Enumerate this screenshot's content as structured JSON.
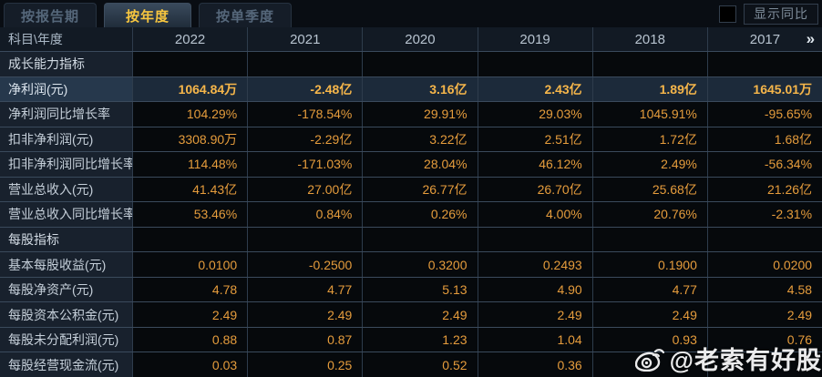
{
  "tabs": [
    {
      "id": "by-report-period",
      "label": "按报告期",
      "active": false
    },
    {
      "id": "by-year",
      "label": "按年度",
      "active": true
    },
    {
      "id": "by-quarter",
      "label": "按单季度",
      "active": false
    }
  ],
  "controls": {
    "show_yoy_label": "显示同比",
    "checkbox_checked": false
  },
  "table": {
    "corner_header": "科目\\年度",
    "year_columns": [
      "2022",
      "2021",
      "2020",
      "2019",
      "2018",
      "2017"
    ],
    "more_icon": "»",
    "rows": [
      {
        "type": "section",
        "label": "成长能力指标",
        "values": [
          "",
          "",
          "",
          "",
          "",
          ""
        ]
      },
      {
        "type": "highlight",
        "label": "净利润(元)",
        "values": [
          "1064.84万",
          "-2.48亿",
          "3.16亿",
          "2.43亿",
          "1.89亿",
          "1645.01万"
        ]
      },
      {
        "type": "data",
        "label": "净利润同比增长率",
        "values": [
          "104.29%",
          "-178.54%",
          "29.91%",
          "29.03%",
          "1045.91%",
          "-95.65%"
        ]
      },
      {
        "type": "data",
        "label": "扣非净利润(元)",
        "values": [
          "3308.90万",
          "-2.29亿",
          "3.22亿",
          "2.51亿",
          "1.72亿",
          "1.68亿"
        ]
      },
      {
        "type": "data",
        "label": "扣非净利润同比增长率",
        "values": [
          "114.48%",
          "-171.03%",
          "28.04%",
          "46.12%",
          "2.49%",
          "-56.34%"
        ]
      },
      {
        "type": "data",
        "label": "营业总收入(元)",
        "values": [
          "41.43亿",
          "27.00亿",
          "26.77亿",
          "26.70亿",
          "25.68亿",
          "21.26亿"
        ]
      },
      {
        "type": "data",
        "label": "营业总收入同比增长率",
        "values": [
          "53.46%",
          "0.84%",
          "0.26%",
          "4.00%",
          "20.76%",
          "-2.31%"
        ]
      },
      {
        "type": "section",
        "label": "每股指标",
        "values": [
          "",
          "",
          "",
          "",
          "",
          ""
        ]
      },
      {
        "type": "data",
        "label": "基本每股收益(元)",
        "values": [
          "0.0100",
          "-0.2500",
          "0.3200",
          "0.2493",
          "0.1900",
          "0.0200"
        ]
      },
      {
        "type": "data",
        "label": "每股净资产(元)",
        "values": [
          "4.78",
          "4.77",
          "5.13",
          "4.90",
          "4.77",
          "4.58"
        ]
      },
      {
        "type": "data",
        "label": "每股资本公积金(元)",
        "values": [
          "2.49",
          "2.49",
          "2.49",
          "2.49",
          "2.49",
          "2.49"
        ]
      },
      {
        "type": "data",
        "label": "每股未分配利润(元)",
        "values": [
          "0.88",
          "0.87",
          "1.23",
          "1.04",
          "0.93",
          "0.76"
        ]
      },
      {
        "type": "data",
        "label": "每股经营现金流(元)",
        "values": [
          "0.03",
          "0.25",
          "0.52",
          "0.36",
          "",
          ""
        ]
      }
    ]
  },
  "watermark": {
    "text": "@老索有好股"
  },
  "colors": {
    "accent_gold": "#f7c63f",
    "value_amber": "#e59c3c",
    "highlight_value": "#f6b64a",
    "grid_line": "#3a4a5c",
    "label_bg": "#18212d",
    "highlight_bg": "#1c2a3a"
  }
}
